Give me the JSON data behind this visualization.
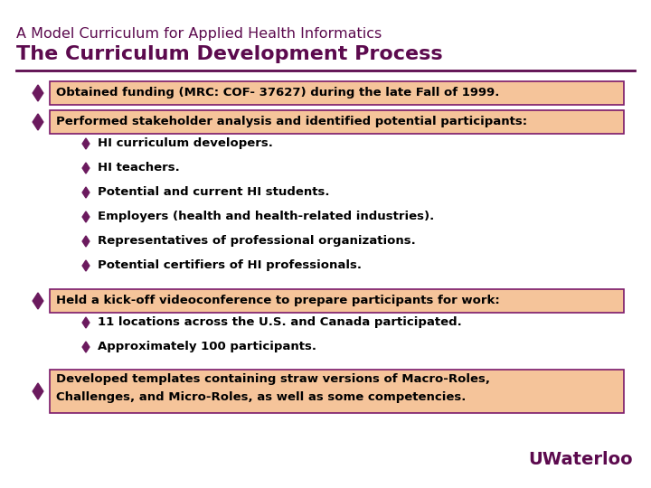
{
  "bg_color": "#ffffff",
  "title_line1": "A Model Curriculum for Applied Health Informatics",
  "title_line2": "The Curriculum Development Process",
  "title_color": "#5c0a4e",
  "title_line1_size": 11.5,
  "title_line2_size": 16,
  "diamond_color": "#6b1a5e",
  "text_color": "#000000",
  "box_fill": "#f5c49a",
  "box_edge": "#7b1a6b",
  "separator_color": "#5c0a4e",
  "uwaterloo_color": "#5c0a4e",
  "bullet1": "Obtained funding (MRC: COF- 37627) during the late Fall of 1999.",
  "bullet2_header": "Performed stakeholder analysis and identified potential participants:",
  "bullet2_subs": [
    "HI curriculum developers.",
    "HI teachers.",
    "Potential and current HI students.",
    "Employers (health and health-related industries).",
    "Representatives of professional organizations.",
    "Potential certifiers of HI professionals."
  ],
  "bullet3_header": "Held a kick-off videoconference to prepare participants for work:",
  "bullet3_subs": [
    "11 locations across the U.S. and Canada participated.",
    "Approximately 100 participants."
  ],
  "bullet4_line1": "Developed templates containing straw versions of Macro-Roles,",
  "bullet4_line2": "Challenges, and Micro-Roles, as well as some competencies.",
  "waterloo_text": "UWaterloo"
}
